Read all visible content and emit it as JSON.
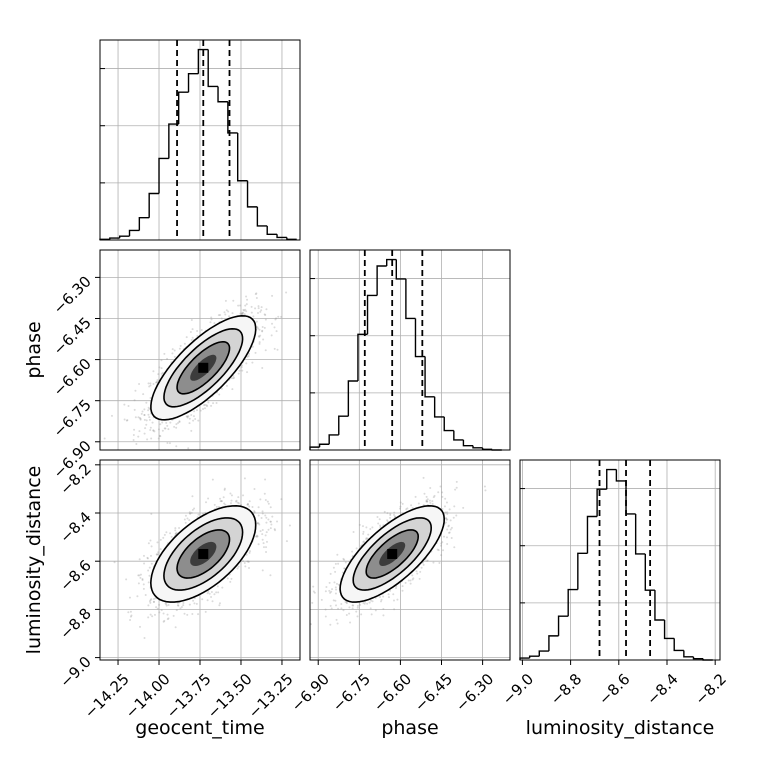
{
  "chart_data": {
    "type": "corner",
    "parameters": [
      "geocent_time",
      "phase",
      "luminosity_distance"
    ],
    "xlabels": [
      "geocent_time",
      "phase",
      "luminosity_distance"
    ],
    "ylabels": [
      "",
      "phase",
      "luminosity_distance"
    ],
    "ranges": {
      "geocent_time": [
        -14.36,
        -13.14
      ],
      "phase": [
        -6.93,
        -6.2
      ],
      "luminosity_distance": [
        -9.01,
        -8.18
      ]
    },
    "ticks": {
      "geocent_time": {
        "values": [
          -14.25,
          -14.0,
          -13.75,
          -13.5,
          -13.25
        ],
        "labels": [
          "−14.25",
          "−14.00",
          "−13.75",
          "−13.50",
          "−13.25"
        ]
      },
      "phase": {
        "values": [
          -6.9,
          -6.75,
          -6.6,
          -6.45,
          -6.3
        ],
        "labels": [
          "−6.90",
          "−6.75",
          "−6.60",
          "−6.45",
          "−6.30"
        ]
      },
      "luminosity_distance": {
        "values": [
          -9.0,
          -8.8,
          -8.6,
          -8.4,
          -8.2
        ],
        "labels": [
          "−9.0",
          "−8.8",
          "−8.6",
          "−8.4",
          "−8.2"
        ]
      }
    },
    "quantiles": {
      "geocent_time": [
        -13.89,
        -13.73,
        -13.57
      ],
      "phase": [
        -6.73,
        -6.63,
        -6.52
      ],
      "luminosity_distance": [
        -8.68,
        -8.57,
        -8.47
      ]
    },
    "histograms": {
      "geocent_time": {
        "edges": [
          -14.36,
          -14.3,
          -14.24,
          -14.18,
          -14.12,
          -14.06,
          -14.0,
          -13.94,
          -13.88,
          -13.82,
          -13.76,
          -13.7,
          -13.64,
          -13.58,
          -13.52,
          -13.46,
          -13.4,
          -13.34,
          -13.28,
          -13.22,
          -13.16
        ],
        "counts": [
          1,
          3,
          6,
          15,
          35,
          73,
          128,
          182,
          232,
          261,
          299,
          241,
          217,
          168,
          93,
          52,
          22,
          9,
          4,
          1
        ]
      },
      "phase": {
        "edges": [
          -6.93,
          -6.895,
          -6.86,
          -6.825,
          -6.79,
          -6.755,
          -6.72,
          -6.685,
          -6.65,
          -6.615,
          -6.58,
          -6.545,
          -6.51,
          -6.475,
          -6.44,
          -6.405,
          -6.37,
          -6.335,
          -6.3,
          -6.265,
          -6.23
        ],
        "counts": [
          4,
          8,
          21,
          47,
          96,
          161,
          215,
          256,
          265,
          238,
          183,
          130,
          74,
          46,
          27,
          14,
          6,
          3,
          1,
          0
        ]
      },
      "luminosity_distance": {
        "edges": [
          -9.01,
          -8.97,
          -8.93,
          -8.89,
          -8.85,
          -8.81,
          -8.77,
          -8.73,
          -8.69,
          -8.65,
          -8.61,
          -8.57,
          -8.53,
          -8.49,
          -8.45,
          -8.41,
          -8.37,
          -8.33,
          -8.29,
          -8.25,
          -8.21
        ],
        "counts": [
          3,
          6,
          14,
          38,
          69,
          111,
          168,
          226,
          269,
          300,
          282,
          230,
          167,
          110,
          63,
          34,
          15,
          5,
          2,
          0
        ]
      }
    },
    "pairs": [
      {
        "x": "geocent_time",
        "y": "phase",
        "mean": [
          -13.73,
          -6.63
        ],
        "sd": [
          0.16,
          0.095
        ],
        "correlation": 0.75
      },
      {
        "x": "geocent_time",
        "y": "luminosity_distance",
        "mean": [
          -13.73,
          -8.57
        ],
        "sd": [
          0.16,
          0.1
        ],
        "correlation": 0.6
      },
      {
        "x": "phase",
        "y": "luminosity_distance",
        "mean": [
          -6.63,
          -8.57
        ],
        "sd": [
          0.095,
          0.1
        ],
        "correlation": 0.72
      }
    ],
    "grid": true,
    "colors": {
      "line": "#000000",
      "grid": "#b0b0b0",
      "point": "#999999"
    }
  }
}
